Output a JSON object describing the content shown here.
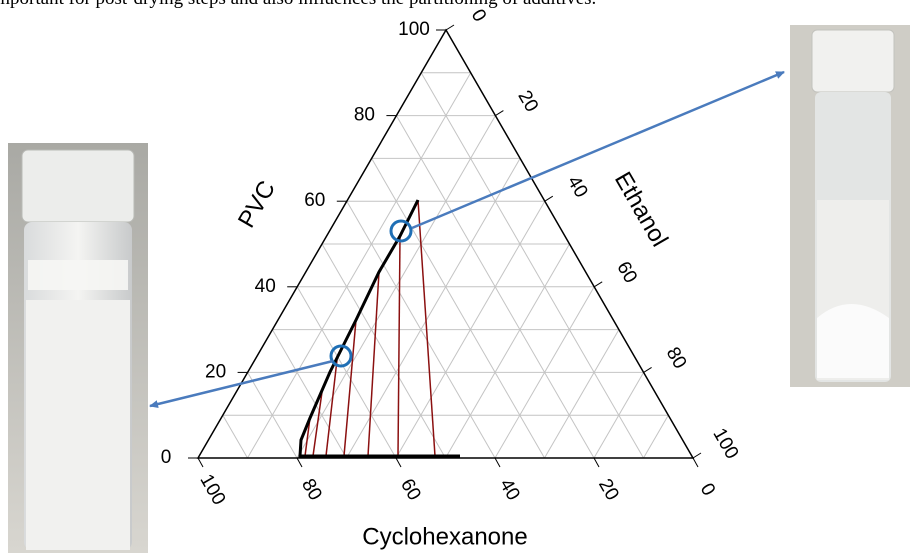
{
  "caption_fragment": "important for post-drying steps and also influences the partitioning of additives.",
  "figure": {
    "axes": {
      "pvc": {
        "title": "PVC",
        "ticks": [
          "0",
          "20",
          "40",
          "60",
          "80",
          "100"
        ]
      },
      "ethanol": {
        "title": "Ethanol",
        "ticks": [
          "0",
          "20",
          "40",
          "60",
          "80",
          "100"
        ]
      },
      "cyclohexanone": {
        "title": "Cyclohexanone",
        "ticks": [
          "100",
          "80",
          "60",
          "40",
          "20",
          "0"
        ]
      }
    }
  }
}
